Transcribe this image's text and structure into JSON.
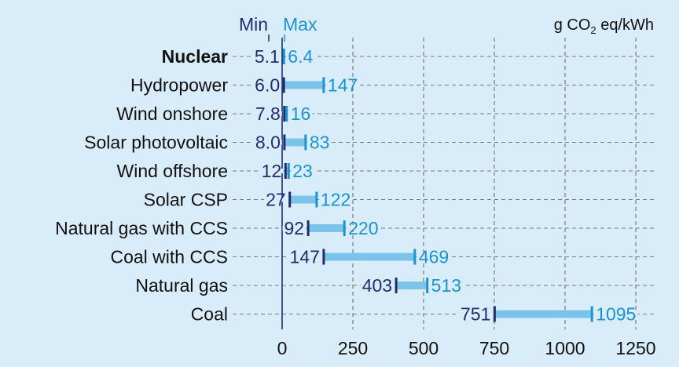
{
  "chart_data": {
    "type": "bar",
    "subtype": "range",
    "header": {
      "min_label": "Min",
      "max_label": "Max"
    },
    "unit": {
      "prefix": "g CO",
      "sub": "2",
      "suffix": " eq/kWh"
    },
    "xlim": [
      0,
      1250
    ],
    "xticks": [
      0,
      250,
      500,
      750,
      1000,
      1250
    ],
    "grid": "vertical dashed",
    "categories": [
      {
        "name": "Nuclear",
        "min": 5.1,
        "max": 6.4,
        "min_label": "5.1",
        "max_label": "6.4",
        "bold": true
      },
      {
        "name": "Hydropower",
        "min": 6.0,
        "max": 147,
        "min_label": "6.0",
        "max_label": "147"
      },
      {
        "name": "Wind onshore",
        "min": 7.8,
        "max": 16,
        "min_label": "7.8",
        "max_label": "16"
      },
      {
        "name": "Solar photovoltaic",
        "min": 8.0,
        "max": 83,
        "min_label": "8.0",
        "max_label": "83"
      },
      {
        "name": "Wind offshore",
        "min": 12,
        "max": 23,
        "min_label": "12",
        "max_label": "23"
      },
      {
        "name": "Solar CSP",
        "min": 27,
        "max": 122,
        "min_label": "27",
        "max_label": "122"
      },
      {
        "name": "Natural gas with CCS",
        "min": 92,
        "max": 220,
        "min_label": "92",
        "max_label": "220"
      },
      {
        "name": "Coal with CCS",
        "min": 147,
        "max": 469,
        "min_label": "147",
        "max_label": "469"
      },
      {
        "name": "Natural gas",
        "min": 403,
        "max": 513,
        "min_label": "403",
        "max_label": "513"
      },
      {
        "name": "Coal",
        "min": 751,
        "max": 1095,
        "min_label": "751",
        "max_label": "1095"
      }
    ],
    "colors": {
      "bar": "#7cc3ea",
      "min_marker": "#1f2d6e",
      "max_marker": "#1a93cf",
      "grid": "#7a7a7a",
      "background": "#d9ecf9"
    }
  }
}
